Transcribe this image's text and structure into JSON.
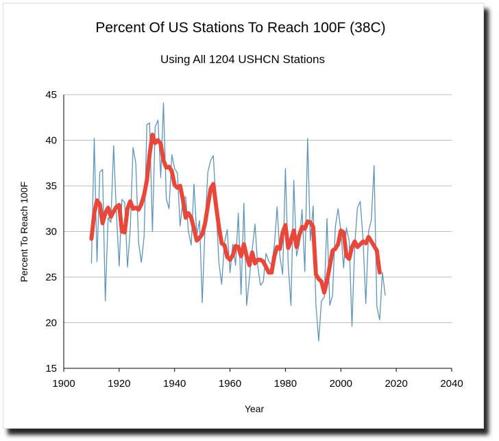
{
  "chart_data": {
    "type": "line",
    "title": "Percent Of US Stations To Reach 100F (38C)",
    "subtitle": "Using All 1204 USHCN Stations",
    "xlabel": "Year",
    "ylabel": "Percent To Reach 100F",
    "xlim": [
      1900,
      2040
    ],
    "ylim": [
      15,
      45
    ],
    "xticks": [
      "1900",
      "1920",
      "1940",
      "1960",
      "1980",
      "2000",
      "2020",
      "2040"
    ],
    "yticks": [
      "15",
      "20",
      "25",
      "30",
      "35",
      "40",
      "45"
    ],
    "grid": "horizontal",
    "series": [
      {
        "color": "#5f93b8",
        "x": [
          1910,
          1911,
          1912,
          1913,
          1914,
          1915,
          1916,
          1917,
          1918,
          1919,
          1920,
          1921,
          1922,
          1923,
          1924,
          1925,
          1926,
          1927,
          1928,
          1929,
          1930,
          1931,
          1932,
          1933,
          1934,
          1935,
          1936,
          1937,
          1938,
          1939,
          1940,
          1941,
          1942,
          1943,
          1944,
          1945,
          1946,
          1947,
          1948,
          1949,
          1950,
          1951,
          1952,
          1953,
          1954,
          1955,
          1956,
          1957,
          1958,
          1959,
          1960,
          1961,
          1962,
          1963,
          1964,
          1965,
          1966,
          1967,
          1968,
          1969,
          1970,
          1971,
          1972,
          1973,
          1974,
          1975,
          1976,
          1977,
          1978,
          1979,
          1980,
          1981,
          1982,
          1983,
          1984,
          1985,
          1986,
          1987,
          1988,
          1989,
          1990,
          1991,
          1992,
          1993,
          1994,
          1995,
          1996,
          1997,
          1998,
          1999,
          2000,
          2001,
          2002,
          2003,
          2004,
          2005,
          2006,
          2007,
          2008,
          2009,
          2010,
          2011,
          2012,
          2013,
          2014,
          2015,
          2016
        ],
        "y": [
          26.5,
          40.2,
          26.7,
          36.5,
          36.8,
          22.4,
          31.5,
          31.0,
          39.4,
          32.0,
          26.2,
          33.5,
          33.2,
          26.1,
          30.2,
          39.2,
          37.5,
          28.8,
          26.6,
          29.4,
          41.7,
          41.9,
          30.0,
          41.5,
          42.2,
          35.9,
          44.1,
          33.6,
          32.5,
          38.4,
          36.9,
          36.4,
          30.6,
          33.5,
          33.8,
          30.0,
          28.5,
          35.2,
          29.6,
          31.2,
          22.2,
          30.6,
          36.5,
          37.8,
          38.3,
          32.4,
          26.6,
          24.2,
          28.8,
          30.2,
          25.5,
          28.6,
          26.3,
          32.0,
          23.1,
          33.1,
          21.9,
          24.9,
          28.0,
          30.8,
          26.2,
          24.1,
          24.5,
          27.6,
          26.7,
          26.3,
          28.5,
          32.7,
          27.3,
          25.3,
          36.9,
          26.3,
          21.9,
          35.6,
          27.3,
          28.6,
          32.4,
          25.6,
          40.2,
          29.0,
          32.8,
          22.0,
          18.0,
          22.4,
          22.8,
          31.4,
          21.9,
          23.0,
          30.5,
          32.5,
          30.1,
          26.0,
          30.4,
          29.0,
          19.6,
          28.5,
          32.6,
          33.3,
          29.2,
          22.1,
          30.0,
          31.3,
          37.2,
          21.8,
          20.3,
          25.5,
          23.0
        ]
      },
      {
        "color": "#e8473a",
        "x": [
          1910,
          1911,
          1912,
          1913,
          1914,
          1915,
          1916,
          1917,
          1918,
          1919,
          1920,
          1921,
          1922,
          1923,
          1924,
          1925,
          1926,
          1927,
          1928,
          1929,
          1930,
          1931,
          1932,
          1933,
          1934,
          1935,
          1936,
          1937,
          1938,
          1939,
          1940,
          1941,
          1942,
          1943,
          1944,
          1945,
          1946,
          1947,
          1948,
          1949,
          1950,
          1951,
          1952,
          1953,
          1954,
          1955,
          1956,
          1957,
          1958,
          1959,
          1960,
          1961,
          1962,
          1963,
          1964,
          1965,
          1966,
          1967,
          1968,
          1969,
          1970,
          1971,
          1972,
          1973,
          1974,
          1975,
          1976,
          1977,
          1978,
          1979,
          1980,
          1981,
          1982,
          1983,
          1984,
          1985,
          1986,
          1987,
          1988,
          1989,
          1990,
          1991,
          1992,
          1993,
          1994,
          1995,
          1996,
          1997,
          1998,
          1999,
          2000,
          2001,
          2002,
          2003,
          2004,
          2005,
          2006,
          2007,
          2008,
          2009,
          2010,
          2011,
          2012,
          2013,
          2014
        ],
        "y": [
          29.2,
          32.0,
          33.4,
          33.0,
          30.9,
          32.0,
          32.6,
          31.6,
          32.2,
          32.7,
          32.9,
          30.0,
          29.9,
          32.5,
          33.3,
          32.5,
          32.6,
          32.4,
          33.0,
          34.0,
          35.6,
          38.5,
          40.6,
          39.7,
          40.0,
          39.6,
          37.8,
          37.0,
          37.1,
          36.6,
          35.1,
          34.8,
          35.0,
          33.5,
          31.5,
          32.0,
          31.5,
          30.3,
          29.0,
          29.3,
          29.7,
          30.9,
          32.8,
          34.7,
          35.2,
          32.7,
          30.5,
          28.7,
          28.5,
          27.2,
          26.9,
          27.4,
          28.4,
          28.3,
          27.3,
          28.6,
          27.3,
          26.3,
          27.7,
          26.5,
          26.9,
          26.9,
          26.7,
          26.1,
          25.5,
          25.5,
          27.3,
          28.3,
          28.1,
          29.9,
          30.7,
          28.2,
          29.0,
          30.1,
          28.3,
          29.6,
          30.5,
          30.3,
          31.1,
          31.0,
          30.5,
          25.3,
          24.8,
          24.5,
          23.3,
          24.6,
          26.2,
          27.9,
          28.1,
          28.6,
          30.1,
          29.9,
          27.3,
          27.0,
          28.3,
          28.9,
          28.3,
          28.6,
          28.9,
          28.7,
          29.4,
          28.9,
          28.4,
          27.9,
          25.5
        ]
      }
    ]
  }
}
